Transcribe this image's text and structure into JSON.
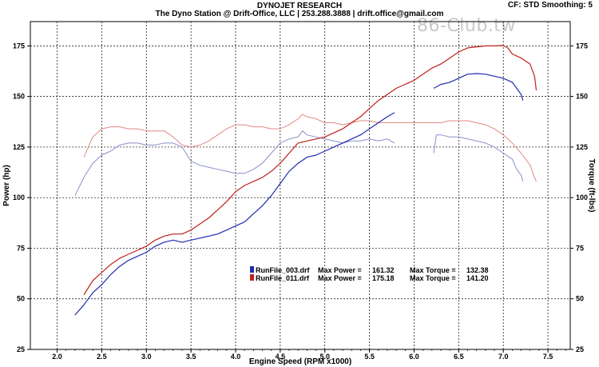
{
  "header": {
    "title": "DYNOJET RESEARCH",
    "subtitle": "The Dyno Station @ Drift-Office, LLC | 253.288.3888 | drift.office@gmail.com",
    "correction": "CF: STD  Smoothing: 5",
    "watermark": "86-Club.tw"
  },
  "chart_data": {
    "type": "line",
    "xlabel": "Engine Speed (RPM x1000)",
    "ylabel_left": "Power (hp)",
    "ylabel_right": "Torque (ft-lbs)",
    "xlim": [
      1.7,
      7.75
    ],
    "ylim": [
      25,
      187
    ],
    "x_ticks": [
      "2.0",
      "2.5",
      "3.0",
      "3.5",
      "4.0",
      "4.5",
      "5.0",
      "5.5",
      "6.0",
      "6.5",
      "7.0",
      "7.5"
    ],
    "y_ticks": [
      "25",
      "50",
      "75",
      "100",
      "125",
      "150",
      "175"
    ],
    "grid": true,
    "legend": [
      {
        "swatch": "#1f2bb0",
        "file": "RunFile_003.drf",
        "max_power_label": "Max Power =",
        "max_power": "161.32",
        "max_torque_label": "Max Torque =",
        "max_torque": "132.38"
      },
      {
        "swatch": "#c0201a",
        "file": "RunFile_011.drf",
        "max_power_label": "Max Power =",
        "max_power": "175.18",
        "max_torque_label": "Max Torque =",
        "max_torque": "141.20"
      }
    ],
    "series": [
      {
        "name": "RunFile_003.drf",
        "measure": "power",
        "color": "#1f2bb0",
        "segments": [
          [
            [
              2.2,
              42
            ],
            [
              2.3,
              47
            ],
            [
              2.4,
              53
            ],
            [
              2.5,
              57
            ],
            [
              2.6,
              62
            ],
            [
              2.7,
              66
            ],
            [
              2.8,
              69
            ],
            [
              2.9,
              71
            ],
            [
              3.0,
              73
            ],
            [
              3.1,
              76
            ],
            [
              3.2,
              78
            ],
            [
              3.3,
              79
            ],
            [
              3.4,
              78
            ],
            [
              3.5,
              79
            ],
            [
              3.6,
              80
            ],
            [
              3.7,
              81
            ],
            [
              3.8,
              82
            ],
            [
              3.9,
              84
            ],
            [
              4.0,
              86
            ],
            [
              4.1,
              88
            ],
            [
              4.2,
              92
            ],
            [
              4.3,
              96
            ],
            [
              4.4,
              101
            ],
            [
              4.5,
              107
            ],
            [
              4.6,
              113
            ],
            [
              4.7,
              117
            ],
            [
              4.8,
              120
            ],
            [
              4.9,
              121
            ],
            [
              5.0,
              123
            ],
            [
              5.1,
              125
            ],
            [
              5.2,
              127
            ],
            [
              5.3,
              129
            ],
            [
              5.4,
              131
            ],
            [
              5.5,
              134
            ],
            [
              5.6,
              137
            ],
            [
              5.7,
              140
            ],
            [
              5.78,
              142
            ]
          ],
          [
            [
              6.22,
              154
            ],
            [
              6.3,
              156
            ],
            [
              6.4,
              157
            ],
            [
              6.5,
              159
            ],
            [
              6.6,
              161
            ],
            [
              6.7,
              161.3
            ],
            [
              6.8,
              161
            ],
            [
              6.9,
              160
            ],
            [
              7.0,
              159
            ],
            [
              7.1,
              157
            ],
            [
              7.15,
              154
            ],
            [
              7.2,
              151
            ],
            [
              7.22,
              148
            ]
          ]
        ]
      },
      {
        "name": "RunFile_011.drf",
        "measure": "power",
        "color": "#c0201a",
        "segments": [
          [
            [
              2.3,
              52
            ],
            [
              2.4,
              59
            ],
            [
              2.5,
              63
            ],
            [
              2.6,
              67
            ],
            [
              2.7,
              70
            ],
            [
              2.8,
              72
            ],
            [
              2.9,
              74
            ],
            [
              3.0,
              76
            ],
            [
              3.1,
              79
            ],
            [
              3.2,
              81
            ],
            [
              3.3,
              82
            ],
            [
              3.4,
              82
            ],
            [
              3.5,
              84
            ],
            [
              3.6,
              87
            ],
            [
              3.7,
              90
            ],
            [
              3.8,
              94
            ],
            [
              3.9,
              98
            ],
            [
              4.0,
              103
            ],
            [
              4.1,
              106
            ],
            [
              4.2,
              108
            ],
            [
              4.3,
              110
            ],
            [
              4.4,
              113
            ],
            [
              4.5,
              117
            ],
            [
              4.6,
              122
            ],
            [
              4.7,
              127
            ],
            [
              4.8,
              128
            ],
            [
              4.9,
              129
            ],
            [
              5.0,
              130
            ],
            [
              5.1,
              132
            ],
            [
              5.2,
              134
            ],
            [
              5.3,
              137
            ],
            [
              5.4,
              140
            ],
            [
              5.5,
              144
            ],
            [
              5.6,
              148
            ],
            [
              5.7,
              151
            ],
            [
              5.8,
              154
            ],
            [
              5.9,
              156
            ],
            [
              6.0,
              158
            ],
            [
              6.1,
              161
            ],
            [
              6.2,
              164
            ],
            [
              6.3,
              166
            ],
            [
              6.4,
              169
            ],
            [
              6.5,
              172
            ],
            [
              6.6,
              174
            ],
            [
              6.7,
              174.5
            ],
            [
              6.8,
              175
            ],
            [
              6.9,
              175
            ],
            [
              7.0,
              175.2
            ],
            [
              7.05,
              174
            ],
            [
              7.1,
              171
            ],
            [
              7.2,
              169
            ],
            [
              7.3,
              166
            ],
            [
              7.35,
              160
            ],
            [
              7.37,
              153
            ]
          ]
        ]
      },
      {
        "name": "RunFile_003.drf",
        "measure": "torque",
        "color": "#8a8fcc",
        "segments": [
          [
            [
              2.2,
              101
            ],
            [
              2.3,
              110
            ],
            [
              2.4,
              117
            ],
            [
              2.5,
              121
            ],
            [
              2.6,
              123
            ],
            [
              2.7,
              126
            ],
            [
              2.8,
              127
            ],
            [
              2.9,
              127
            ],
            [
              3.0,
              126
            ],
            [
              3.1,
              126
            ],
            [
              3.2,
              127
            ],
            [
              3.3,
              127
            ],
            [
              3.4,
              125
            ],
            [
              3.5,
              118
            ],
            [
              3.6,
              116
            ],
            [
              3.7,
              115
            ],
            [
              3.8,
              114
            ],
            [
              3.9,
              113
            ],
            [
              4.0,
              112
            ],
            [
              4.1,
              112
            ],
            [
              4.2,
              114
            ],
            [
              4.3,
              117
            ],
            [
              4.4,
              122
            ],
            [
              4.5,
              127
            ],
            [
              4.6,
              129
            ],
            [
              4.7,
              130
            ],
            [
              4.75,
              133
            ],
            [
              4.8,
              131
            ],
            [
              4.9,
              130
            ],
            [
              5.0,
              129
            ],
            [
              5.1,
              128
            ],
            [
              5.2,
              127
            ],
            [
              5.3,
              128
            ],
            [
              5.4,
              128
            ],
            [
              5.5,
              129
            ],
            [
              5.6,
              128
            ],
            [
              5.7,
              129
            ],
            [
              5.78,
              127
            ]
          ],
          [
            [
              6.22,
              122
            ],
            [
              6.25,
              131
            ],
            [
              6.3,
              131
            ],
            [
              6.4,
              130
            ],
            [
              6.5,
              130
            ],
            [
              6.6,
              129
            ],
            [
              6.7,
              128
            ],
            [
              6.8,
              127
            ],
            [
              6.9,
              125
            ],
            [
              7.0,
              122
            ],
            [
              7.1,
              119
            ],
            [
              7.15,
              114
            ],
            [
              7.2,
              111
            ],
            [
              7.22,
              108
            ]
          ]
        ]
      },
      {
        "name": "RunFile_011.drf",
        "measure": "torque",
        "color": "#e08a86",
        "segments": [
          [
            [
              2.3,
              120
            ],
            [
              2.4,
              130
            ],
            [
              2.5,
              134
            ],
            [
              2.6,
              135
            ],
            [
              2.7,
              135
            ],
            [
              2.8,
              134
            ],
            [
              2.9,
              134
            ],
            [
              3.0,
              133
            ],
            [
              3.1,
              133
            ],
            [
              3.2,
              133
            ],
            [
              3.3,
              130
            ],
            [
              3.4,
              126
            ],
            [
              3.5,
              125
            ],
            [
              3.6,
              126
            ],
            [
              3.7,
              128
            ],
            [
              3.8,
              131
            ],
            [
              3.9,
              134
            ],
            [
              4.0,
              136
            ],
            [
              4.1,
              136
            ],
            [
              4.2,
              135
            ],
            [
              4.3,
              135
            ],
            [
              4.4,
              134
            ],
            [
              4.5,
              134
            ],
            [
              4.6,
              136
            ],
            [
              4.7,
              139
            ],
            [
              4.75,
              141.2
            ],
            [
              4.8,
              140
            ],
            [
              4.9,
              139
            ],
            [
              5.0,
              137
            ],
            [
              5.1,
              137
            ],
            [
              5.2,
              136
            ],
            [
              5.3,
              137
            ],
            [
              5.4,
              138
            ],
            [
              5.5,
              138
            ],
            [
              5.6,
              137
            ],
            [
              5.7,
              137
            ],
            [
              5.8,
              137
            ],
            [
              5.9,
              137
            ],
            [
              6.0,
              137
            ],
            [
              6.1,
              137
            ],
            [
              6.2,
              137
            ],
            [
              6.3,
              137
            ],
            [
              6.4,
              138
            ],
            [
              6.5,
              138
            ],
            [
              6.6,
              138
            ],
            [
              6.7,
              137
            ],
            [
              6.8,
              136
            ],
            [
              6.9,
              134
            ],
            [
              7.0,
              131
            ],
            [
              7.1,
              127
            ],
            [
              7.2,
              122
            ],
            [
              7.3,
              116
            ],
            [
              7.35,
              110
            ],
            [
              7.37,
              108
            ]
          ]
        ]
      }
    ]
  }
}
